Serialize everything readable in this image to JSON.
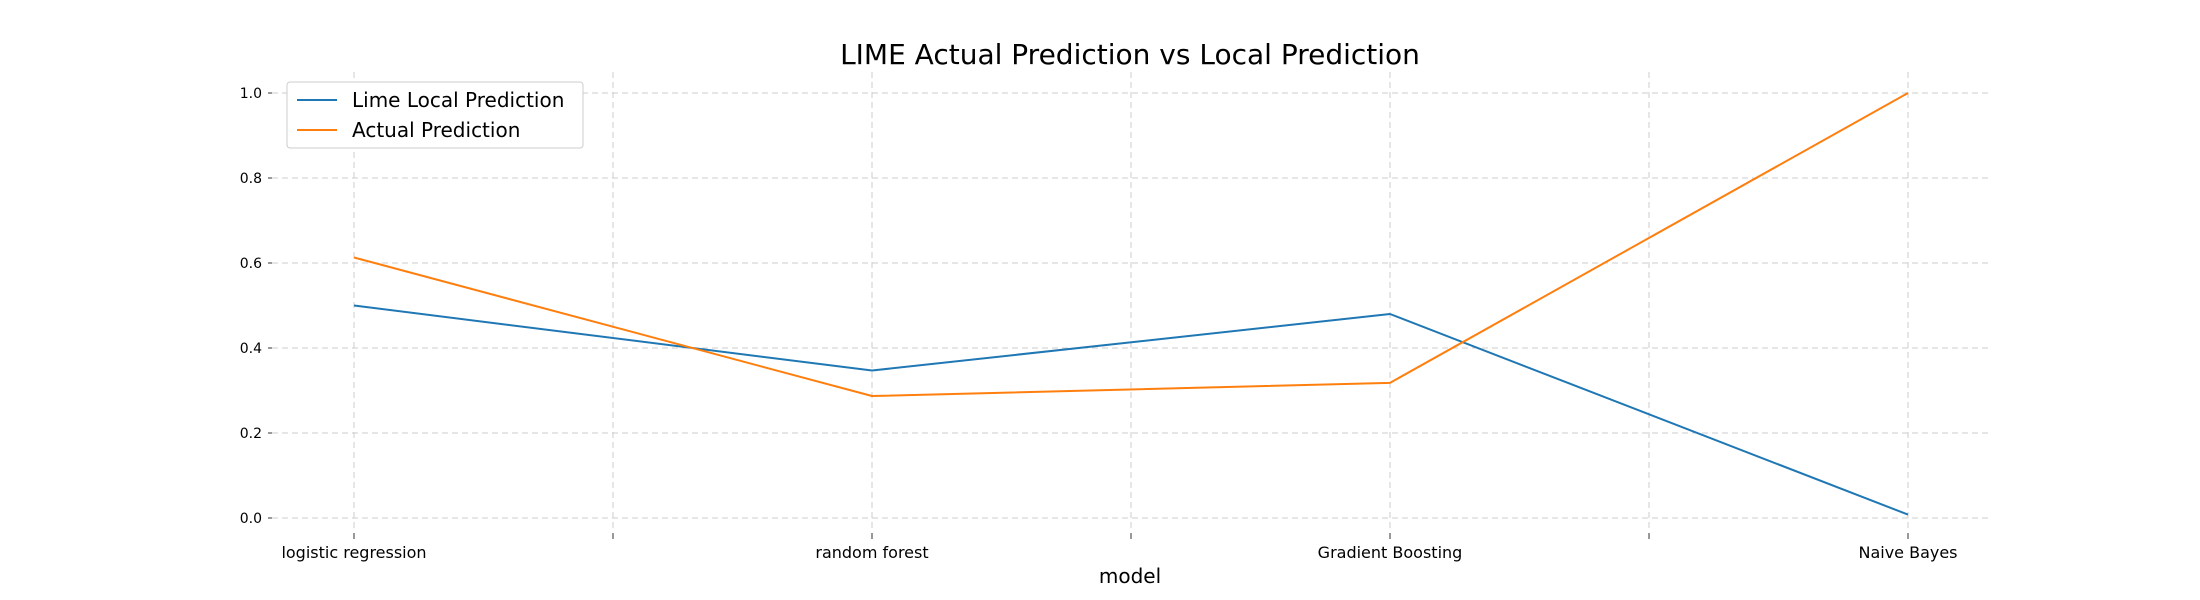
{
  "chart_data": {
    "type": "line",
    "title": "LIME Actual Prediction vs Local Prediction",
    "xlabel": "model",
    "ylabel": "",
    "categories": [
      "logistic regression",
      "random forest",
      "Gradient Boosting",
      "Naive Bayes"
    ],
    "x_ticks_total": 7,
    "ylim": [
      -0.02,
      1.05
    ],
    "yticks": [
      "0.0",
      "0.2",
      "0.4",
      "0.6",
      "0.8",
      "1.0"
    ],
    "grid": true,
    "legend_position": "top-left",
    "series": [
      {
        "name": "Lime Local Prediction",
        "color": "#1f77b4",
        "values": [
          0.5,
          0.347,
          0.48,
          0.008
        ]
      },
      {
        "name": "Actual Prediction",
        "color": "#ff7f0e",
        "values": [
          0.613,
          0.287,
          0.318,
          1.0
        ]
      }
    ]
  }
}
